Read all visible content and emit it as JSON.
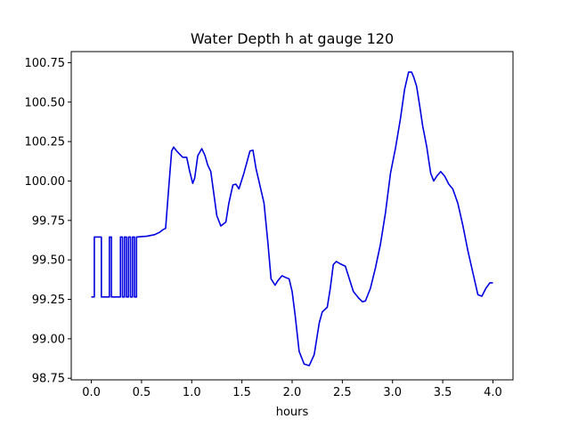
{
  "chart_data": {
    "type": "line",
    "title": "Water Depth h at gauge 120",
    "xlabel": "hours",
    "ylabel": "",
    "xlim": [
      -0.2,
      4.2
    ],
    "ylim": [
      98.74,
      100.82
    ],
    "xticks": [
      "0.0",
      "0.5",
      "1.0",
      "1.5",
      "2.0",
      "2.5",
      "3.0",
      "3.5",
      "4.0"
    ],
    "yticks": [
      "98.75",
      "99.00",
      "99.25",
      "99.50",
      "99.75",
      "100.00",
      "100.25",
      "100.50",
      "100.75"
    ],
    "grid": false,
    "legend": "none",
    "series": [
      {
        "color": "#0000e0",
        "points": [
          [
            0.0,
            99.265
          ],
          [
            0.03,
            99.265
          ],
          [
            0.03,
            99.645
          ],
          [
            0.1,
            99.645
          ],
          [
            0.1,
            99.265
          ],
          [
            0.18,
            99.265
          ],
          [
            0.18,
            99.645
          ],
          [
            0.2,
            99.645
          ],
          [
            0.2,
            99.265
          ],
          [
            0.29,
            99.265
          ],
          [
            0.29,
            99.645
          ],
          [
            0.31,
            99.645
          ],
          [
            0.31,
            99.265
          ],
          [
            0.33,
            99.265
          ],
          [
            0.33,
            99.645
          ],
          [
            0.35,
            99.645
          ],
          [
            0.35,
            99.265
          ],
          [
            0.37,
            99.265
          ],
          [
            0.37,
            99.645
          ],
          [
            0.39,
            99.645
          ],
          [
            0.39,
            99.265
          ],
          [
            0.41,
            99.265
          ],
          [
            0.41,
            99.645
          ],
          [
            0.43,
            99.645
          ],
          [
            0.43,
            99.265
          ],
          [
            0.45,
            99.265
          ],
          [
            0.45,
            99.645
          ],
          [
            0.55,
            99.65
          ],
          [
            0.63,
            99.66
          ],
          [
            0.68,
            99.675
          ],
          [
            0.71,
            99.69
          ],
          [
            0.74,
            99.7
          ],
          [
            0.77,
            99.95
          ],
          [
            0.8,
            100.19
          ],
          [
            0.82,
            100.215
          ],
          [
            0.85,
            100.19
          ],
          [
            0.88,
            100.17
          ],
          [
            0.91,
            100.15
          ],
          [
            0.95,
            100.15
          ],
          [
            0.98,
            100.06
          ],
          [
            1.01,
            99.985
          ],
          [
            1.03,
            100.02
          ],
          [
            1.06,
            100.16
          ],
          [
            1.1,
            100.205
          ],
          [
            1.13,
            100.165
          ],
          [
            1.16,
            100.1
          ],
          [
            1.19,
            100.06
          ],
          [
            1.22,
            99.92
          ],
          [
            1.25,
            99.78
          ],
          [
            1.29,
            99.715
          ],
          [
            1.34,
            99.74
          ],
          [
            1.37,
            99.86
          ],
          [
            1.41,
            99.975
          ],
          [
            1.44,
            99.98
          ],
          [
            1.47,
            99.95
          ],
          [
            1.52,
            100.05
          ],
          [
            1.58,
            100.19
          ],
          [
            1.61,
            100.195
          ],
          [
            1.64,
            100.08
          ],
          [
            1.68,
            99.97
          ],
          [
            1.72,
            99.86
          ],
          [
            1.76,
            99.6
          ],
          [
            1.79,
            99.38
          ],
          [
            1.83,
            99.34
          ],
          [
            1.86,
            99.37
          ],
          [
            1.9,
            99.4
          ],
          [
            1.93,
            99.39
          ],
          [
            1.97,
            99.38
          ],
          [
            2.0,
            99.3
          ],
          [
            2.03,
            99.15
          ],
          [
            2.07,
            98.92
          ],
          [
            2.12,
            98.84
          ],
          [
            2.17,
            98.83
          ],
          [
            2.22,
            98.9
          ],
          [
            2.27,
            99.1
          ],
          [
            2.3,
            99.17
          ],
          [
            2.35,
            99.2
          ],
          [
            2.38,
            99.32
          ],
          [
            2.41,
            99.47
          ],
          [
            2.44,
            99.49
          ],
          [
            2.48,
            99.475
          ],
          [
            2.53,
            99.46
          ],
          [
            2.57,
            99.38
          ],
          [
            2.61,
            99.3
          ],
          [
            2.66,
            99.26
          ],
          [
            2.7,
            99.235
          ],
          [
            2.73,
            99.24
          ],
          [
            2.78,
            99.32
          ],
          [
            2.83,
            99.45
          ],
          [
            2.88,
            99.6
          ],
          [
            2.93,
            99.8
          ],
          [
            2.98,
            100.05
          ],
          [
            3.03,
            100.21
          ],
          [
            3.08,
            100.4
          ],
          [
            3.12,
            100.58
          ],
          [
            3.16,
            100.69
          ],
          [
            3.19,
            100.69
          ],
          [
            3.21,
            100.66
          ],
          [
            3.24,
            100.6
          ],
          [
            3.27,
            100.48
          ],
          [
            3.3,
            100.35
          ],
          [
            3.34,
            100.22
          ],
          [
            3.38,
            100.05
          ],
          [
            3.41,
            100.0
          ],
          [
            3.44,
            100.03
          ],
          [
            3.48,
            100.06
          ],
          [
            3.52,
            100.03
          ],
          [
            3.56,
            99.98
          ],
          [
            3.6,
            99.95
          ],
          [
            3.65,
            99.86
          ],
          [
            3.7,
            99.72
          ],
          [
            3.75,
            99.56
          ],
          [
            3.8,
            99.42
          ],
          [
            3.85,
            99.28
          ],
          [
            3.89,
            99.27
          ],
          [
            3.93,
            99.32
          ],
          [
            3.97,
            99.355
          ],
          [
            4.0,
            99.355
          ]
        ]
      }
    ]
  }
}
